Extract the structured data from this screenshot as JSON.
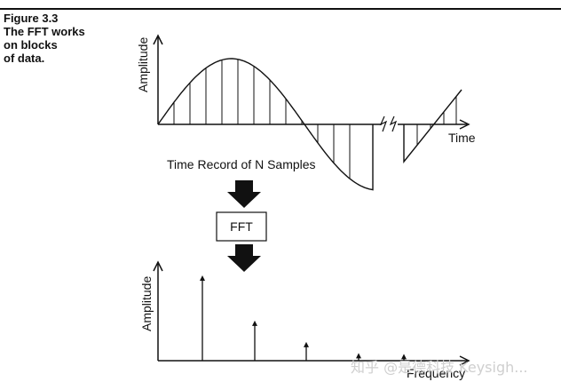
{
  "figure": {
    "caption_lines": [
      "Figure 3.3",
      "The FFT works",
      "on blocks",
      "of data."
    ]
  },
  "top_plot": {
    "ylabel": "Amplitude",
    "xlabel": "Time",
    "record_label": "Time Record of N Samples"
  },
  "process": {
    "box_label": "FFT"
  },
  "bottom_plot": {
    "ylabel": "Amplitude",
    "xlabel": "Frequency",
    "spectral_lines_relative_height": [
      1.0,
      0.47,
      0.22,
      0.09,
      0.08
    ]
  },
  "watermark": {
    "text": "知乎 @是德科技 Keysigh..."
  }
}
